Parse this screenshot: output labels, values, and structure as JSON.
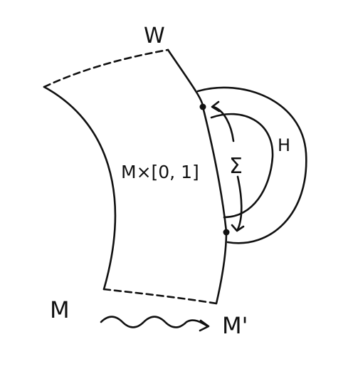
{
  "labels": {
    "cobordism": "W",
    "cylinder": "M×[0, 1]",
    "handle": "H",
    "attaching_sphere": "Σ",
    "left_boundary": "M",
    "right_boundary": "M'"
  },
  "colors": {
    "ink": "#111111",
    "background": "#ffffff"
  }
}
